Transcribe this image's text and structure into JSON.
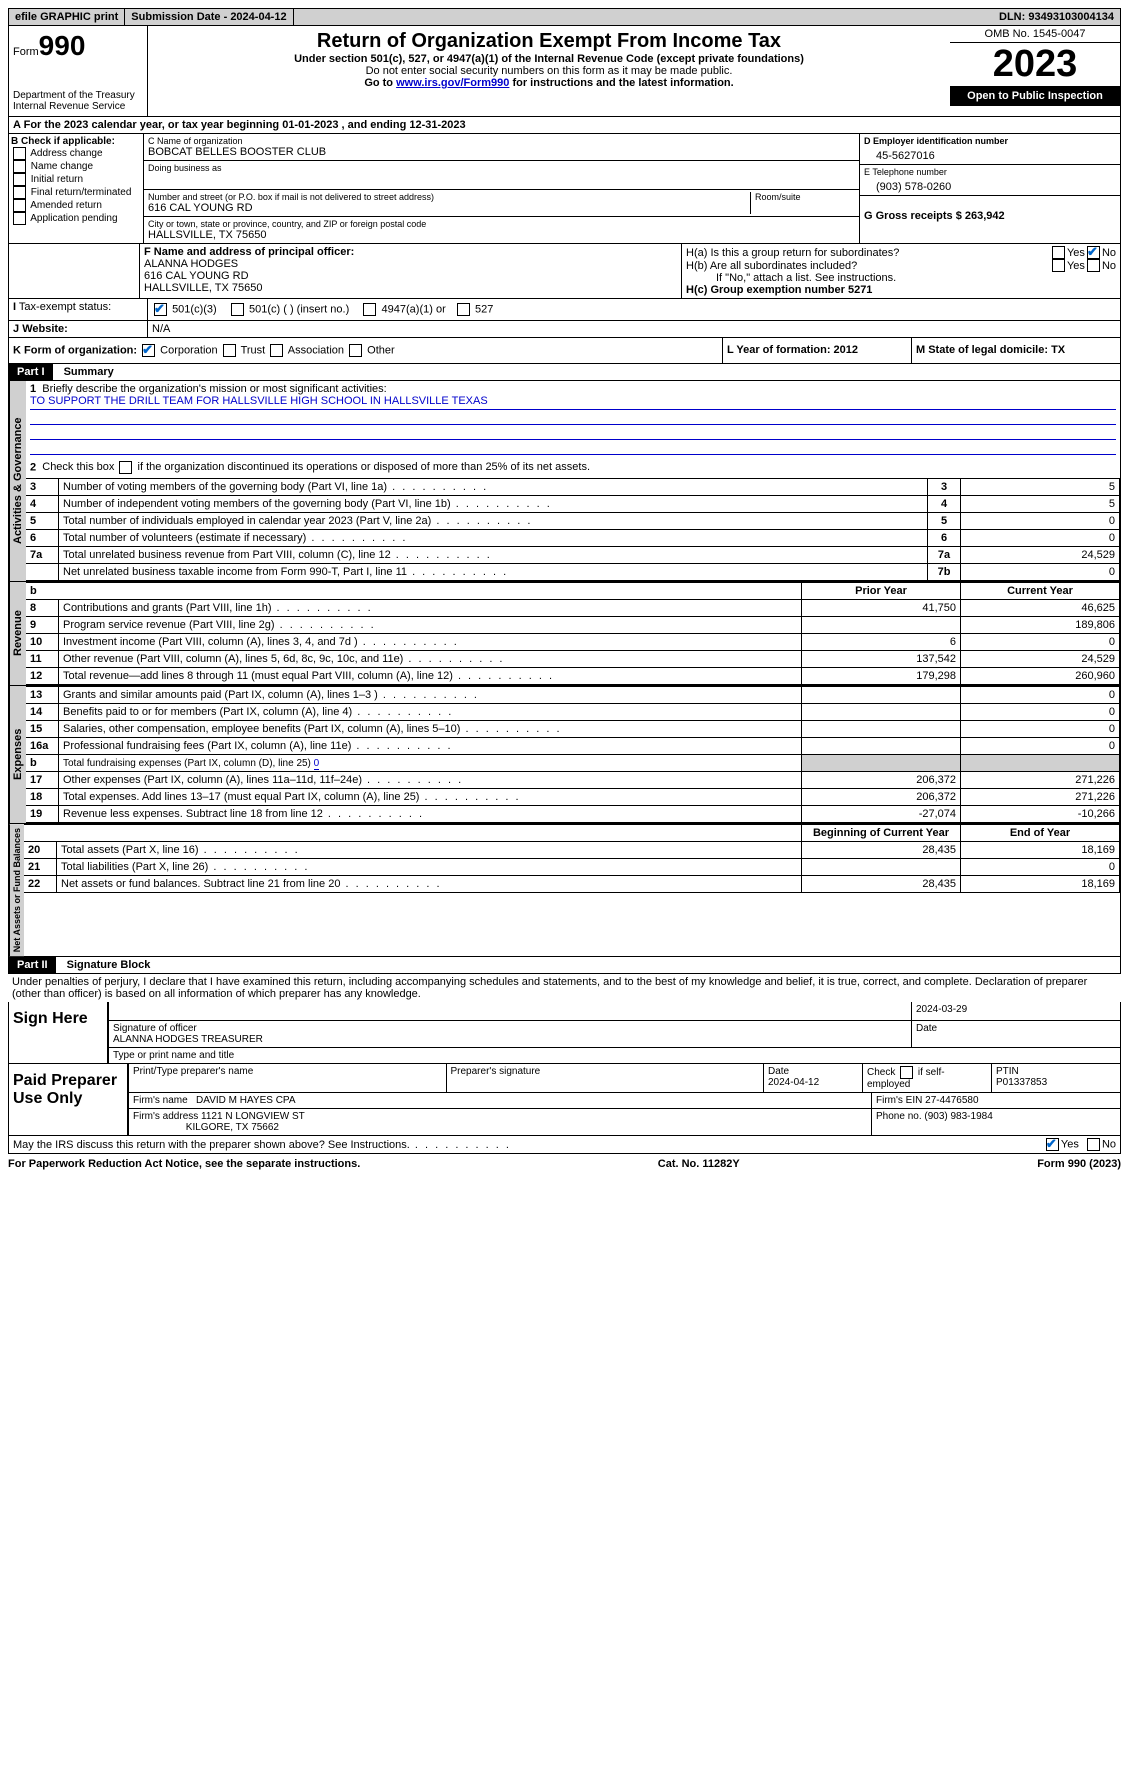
{
  "topbar": {
    "efile": "efile GRAPHIC print",
    "submission": "Submission Date - 2024-04-12",
    "dln": "DLN: 93493103004134"
  },
  "header": {
    "form_label": "Form",
    "form_number": "990",
    "dept": "Department of the Treasury",
    "irs": "Internal Revenue Service",
    "title": "Return of Organization Exempt From Income Tax",
    "subtitle": "Under section 501(c), 527, or 4947(a)(1) of the Internal Revenue Code (except private foundations)",
    "note1": "Do not enter social security numbers on this form as it may be made public.",
    "note2_pre": "Go to ",
    "note2_link": "www.irs.gov/Form990",
    "note2_post": " for instructions and the latest information.",
    "omb": "OMB No. 1545-0047",
    "year": "2023",
    "open": "Open to Public Inspection"
  },
  "sectionA": {
    "line": "For the 2023 calendar year, or tax year beginning 01-01-2023   , and ending 12-31-2023",
    "b_label": "B Check if applicable:",
    "b_items": [
      "Address change",
      "Name change",
      "Initial return",
      "Final return/terminated",
      "Amended return",
      "Application pending"
    ],
    "c_name_label": "C Name of organization",
    "c_name": "BOBCAT BELLES BOOSTER CLUB",
    "dba_label": "Doing business as",
    "street_label": "Number and street (or P.O. box if mail is not delivered to street address)",
    "street": "616 CAL YOUNG RD",
    "room_label": "Room/suite",
    "city_label": "City or town, state or province, country, and ZIP or foreign postal code",
    "city": "HALLSVILLE, TX  75650",
    "d_label": "D Employer identification number",
    "d_value": "45-5627016",
    "e_label": "E Telephone number",
    "e_value": "(903) 578-0260",
    "g_label": "G Gross receipts $ 263,942",
    "f_label": "F  Name and address of principal officer:",
    "f_name": "ALANNA HODGES",
    "f_addr1": "616 CAL YOUNG RD",
    "f_addr2": "HALLSVILLE, TX  75650",
    "ha_label": "H(a)  Is this a group return for subordinates?",
    "hb_label": "H(b)  Are all subordinates included?",
    "hb_note": "If \"No,\" attach a list. See instructions.",
    "hc_label": "H(c)  Group exemption number    5271",
    "i_label": "Tax-exempt status:",
    "i_501c3": "501(c)(3)",
    "i_501c": "501(c) (  ) (insert no.)",
    "i_4947": "4947(a)(1) or",
    "i_527": "527",
    "j_label": "Website:",
    "j_value": "N/A",
    "k_label": "K Form of organization:",
    "k_corp": "Corporation",
    "k_trust": "Trust",
    "k_assoc": "Association",
    "k_other": "Other",
    "l_label": "L Year of formation: 2012",
    "m_label": "M State of legal domicile: TX"
  },
  "part1": {
    "header": "Part I",
    "title": "Summary",
    "l1_label": "Briefly describe the organization's mission or most significant activities:",
    "l1_text": "TO SUPPORT THE DRILL TEAM FOR HALLSVILLE HIGH SCHOOL IN HALLSVILLE TEXAS",
    "l2_label": "Check this box       if the organization discontinued its operations or disposed of more than 25% of its net assets.",
    "gov_label": "Activities & Governance",
    "rev_label": "Revenue",
    "exp_label": "Expenses",
    "net_label": "Net Assets or Fund Balances",
    "rows_gov": [
      {
        "n": "3",
        "t": "Number of voting members of the governing body (Part VI, line 1a)",
        "rn": "3",
        "v": "5"
      },
      {
        "n": "4",
        "t": "Number of independent voting members of the governing body (Part VI, line 1b)",
        "rn": "4",
        "v": "5"
      },
      {
        "n": "5",
        "t": "Total number of individuals employed in calendar year 2023 (Part V, line 2a)",
        "rn": "5",
        "v": "0"
      },
      {
        "n": "6",
        "t": "Total number of volunteers (estimate if necessary)",
        "rn": "6",
        "v": "0"
      },
      {
        "n": "7a",
        "t": "Total unrelated business revenue from Part VIII, column (C), line 12",
        "rn": "7a",
        "v": "24,529"
      },
      {
        "n": "",
        "t": "Net unrelated business taxable income from Form 990-T, Part I, line 11",
        "rn": "7b",
        "v": "0"
      }
    ],
    "prior_label": "Prior Year",
    "current_label": "Current Year",
    "rows_rev": [
      {
        "n": "8",
        "t": "Contributions and grants (Part VIII, line 1h)",
        "p": "41,750",
        "c": "46,625"
      },
      {
        "n": "9",
        "t": "Program service revenue (Part VIII, line 2g)",
        "p": "",
        "c": "189,806"
      },
      {
        "n": "10",
        "t": "Investment income (Part VIII, column (A), lines 3, 4, and 7d )",
        "p": "6",
        "c": "0"
      },
      {
        "n": "11",
        "t": "Other revenue (Part VIII, column (A), lines 5, 6d, 8c, 9c, 10c, and 11e)",
        "p": "137,542",
        "c": "24,529"
      },
      {
        "n": "12",
        "t": "Total revenue—add lines 8 through 11 (must equal Part VIII, column (A), line 12)",
        "p": "179,298",
        "c": "260,960"
      }
    ],
    "rows_exp": [
      {
        "n": "13",
        "t": "Grants and similar amounts paid (Part IX, column (A), lines 1–3 )",
        "p": "",
        "c": "0"
      },
      {
        "n": "14",
        "t": "Benefits paid to or for members (Part IX, column (A), line 4)",
        "p": "",
        "c": "0"
      },
      {
        "n": "15",
        "t": "Salaries, other compensation, employee benefits (Part IX, column (A), lines 5–10)",
        "p": "",
        "c": "0"
      },
      {
        "n": "16a",
        "t": "Professional fundraising fees (Part IX, column (A), line 11e)",
        "p": "",
        "c": "0"
      },
      {
        "n": "b",
        "t": "Total fundraising expenses (Part IX, column (D), line 25) 0",
        "p": "grey",
        "c": "grey"
      },
      {
        "n": "17",
        "t": "Other expenses (Part IX, column (A), lines 11a–11d, 11f–24e)",
        "p": "206,372",
        "c": "271,226"
      },
      {
        "n": "18",
        "t": "Total expenses. Add lines 13–17 (must equal Part IX, column (A), line 25)",
        "p": "206,372",
        "c": "271,226"
      },
      {
        "n": "19",
        "t": "Revenue less expenses. Subtract line 18 from line 12",
        "p": "-27,074",
        "c": "-10,266"
      }
    ],
    "begin_label": "Beginning of Current Year",
    "end_label": "End of Year",
    "rows_net": [
      {
        "n": "20",
        "t": "Total assets (Part X, line 16)",
        "p": "28,435",
        "c": "18,169"
      },
      {
        "n": "21",
        "t": "Total liabilities (Part X, line 26)",
        "p": "",
        "c": "0"
      },
      {
        "n": "22",
        "t": "Net assets or fund balances. Subtract line 21 from line 20",
        "p": "28,435",
        "c": "18,169"
      }
    ]
  },
  "part2": {
    "header": "Part II",
    "title": "Signature Block",
    "declaration": "Under penalties of perjury, I declare that I have examined this return, including accompanying schedules and statements, and to the best of my knowledge and belief, it is true, correct, and complete. Declaration of preparer (other than officer) is based on all information of which preparer has any knowledge.",
    "sign_here": "Sign Here",
    "sig_officer_label": "Signature of officer",
    "sig_date": "2024-03-29",
    "sig_name": "ALANNA HODGES  TREASURER",
    "sig_type_label": "Type or print name and title",
    "date_label": "Date",
    "paid_label": "Paid Preparer Use Only",
    "prep_name_label": "Print/Type preparer's name",
    "prep_sig_label": "Preparer's signature",
    "prep_date": "2024-04-12",
    "prep_check": "Check       if self-employed",
    "ptin_label": "PTIN",
    "ptin": "P01337853",
    "firm_name_label": "Firm's name",
    "firm_name": "DAVID M HAYES CPA",
    "firm_ein_label": "Firm's EIN  27-4476580",
    "firm_addr_label": "Firm's address",
    "firm_addr1": "1121 N LONGVIEW ST",
    "firm_addr2": "KILGORE, TX  75662",
    "firm_phone": "Phone no. (903) 983-1984",
    "discuss": "May the IRS discuss this return with the preparer shown above? See Instructions."
  },
  "footer": {
    "left": "For Paperwork Reduction Act Notice, see the separate instructions.",
    "center": "Cat. No. 11282Y",
    "right": "Form 990 (2023)"
  }
}
